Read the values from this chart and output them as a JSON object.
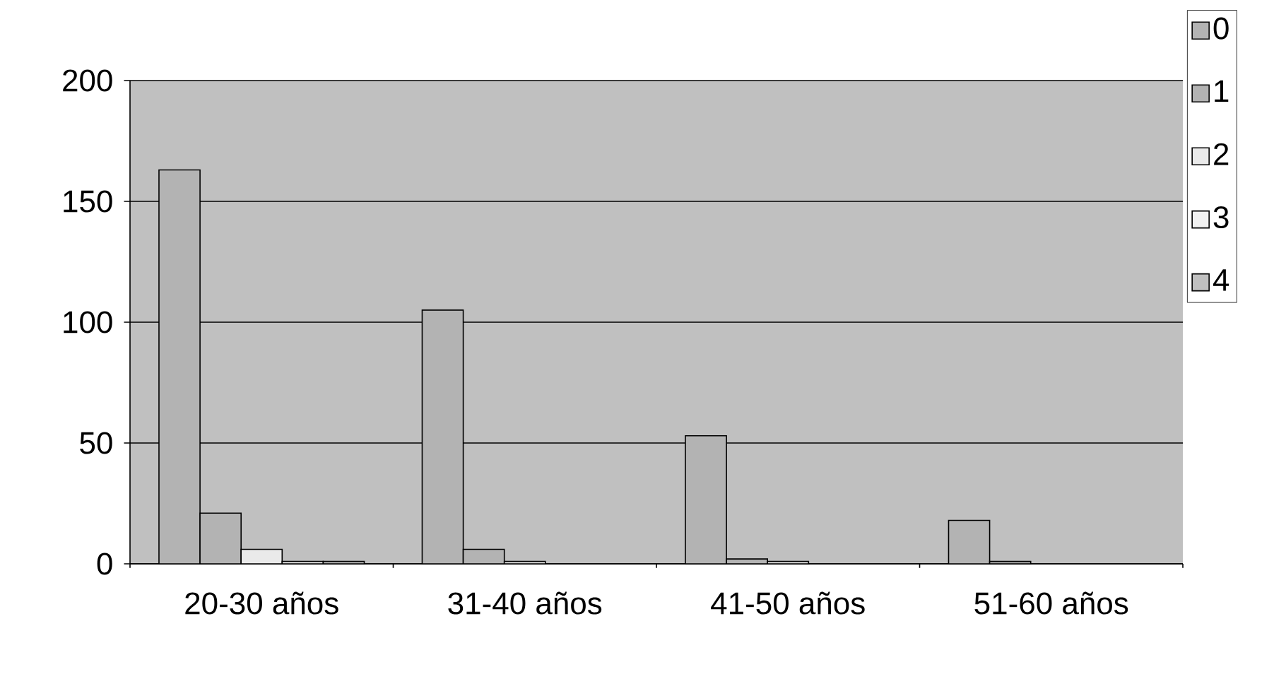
{
  "chart_data": {
    "type": "bar",
    "categories": [
      "20-30 años",
      "31-40 años",
      "41-50 años",
      "51-60 años"
    ],
    "series": [
      {
        "name": "0",
        "color": "#b3b3b3",
        "values": [
          163,
          105,
          53,
          18
        ]
      },
      {
        "name": "1",
        "color": "#b3b3b3",
        "values": [
          21,
          6,
          2,
          1
        ]
      },
      {
        "name": "2",
        "color": "#eaeaea",
        "values": [
          6,
          1,
          1,
          0
        ]
      },
      {
        "name": "3",
        "color": "#f2f2f2",
        "values": [
          1,
          0,
          0,
          0
        ]
      },
      {
        "name": "4",
        "color": "#c0c0c0",
        "values": [
          1,
          0,
          0,
          0
        ]
      }
    ],
    "ylim": [
      0,
      200
    ],
    "yticks": [
      0,
      50,
      100,
      150,
      200
    ],
    "grid": "y",
    "legend": "right"
  }
}
